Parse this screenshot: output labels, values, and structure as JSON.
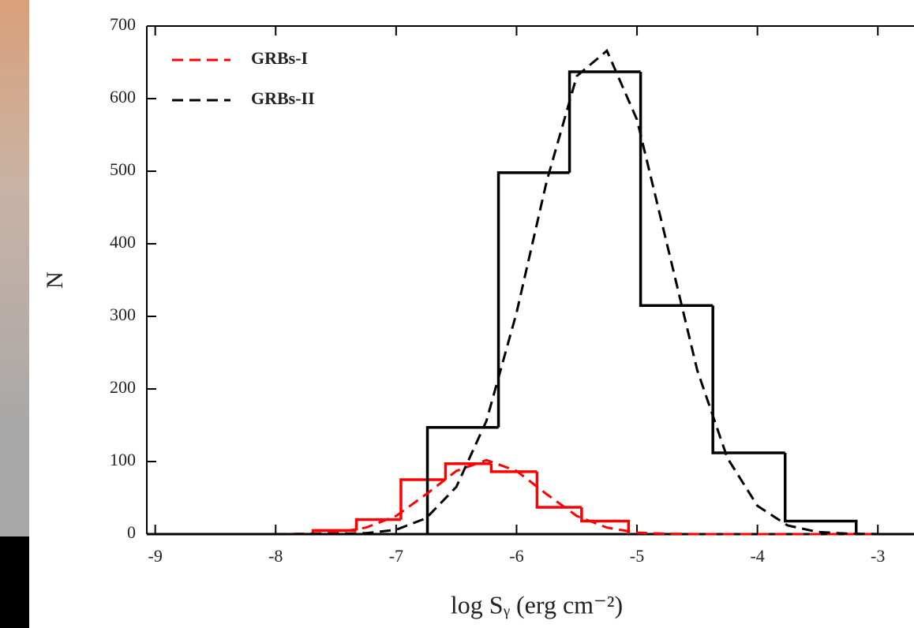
{
  "chart_data": {
    "type": "histogram-fit",
    "x_label": "log Sᵧ (erg cm⁻²)",
    "y_label": "N",
    "xlim": [
      -9.07,
      -2.7
    ],
    "ylim": [
      0,
      700
    ],
    "xticks": [
      -9,
      -8,
      -7,
      -6,
      -5,
      -4,
      -3
    ],
    "yticks": [
      0,
      100,
      200,
      300,
      400,
      500,
      600,
      700
    ],
    "legend": "upper-left",
    "histograms": [
      {
        "color": "#ff0000",
        "bins": [
          -7.69,
          -7.33,
          -6.96,
          -6.59,
          -6.21,
          -5.83,
          -5.46,
          -5.07
        ],
        "counts": [
          5,
          20,
          75,
          97,
          86,
          37,
          18
        ]
      },
      {
        "color": "#000000",
        "bins": [
          -6.74,
          -6.15,
          -5.56,
          -4.97,
          -4.37,
          -3.77,
          -3.18
        ],
        "counts": [
          147,
          498,
          637,
          315,
          112,
          18
        ]
      }
    ],
    "series": [
      {
        "name": "GRBs-I",
        "color": "#ff0000",
        "x": [
          -8,
          -7.75,
          -7.5,
          -7.25,
          -7,
          -6.75,
          -6.5,
          -6.25,
          -6,
          -5.75,
          -5.5,
          -5.25,
          -5,
          -4.75,
          -4.5,
          -4,
          -3
        ],
        "values": [
          0,
          0.4,
          2,
          9,
          25,
          55,
          87,
          102,
          87,
          55,
          25,
          9,
          2,
          0.4,
          0,
          0,
          0
        ]
      },
      {
        "name": "GRBs-II",
        "color": "#000000",
        "x": [
          -8,
          -7.5,
          -7.25,
          -7,
          -6.75,
          -6.5,
          -6.25,
          -6,
          -5.75,
          -5.5,
          -5.25,
          -5,
          -4.75,
          -4.5,
          -4.25,
          -4,
          -3.75,
          -3.5,
          -3.25,
          -3
        ],
        "values": [
          0,
          0.2,
          1.3,
          6,
          22,
          65,
          156,
          305,
          486,
          631,
          666,
          571,
          399,
          226,
          105,
          39,
          12,
          3,
          0.6,
          0.1
        ]
      }
    ]
  }
}
